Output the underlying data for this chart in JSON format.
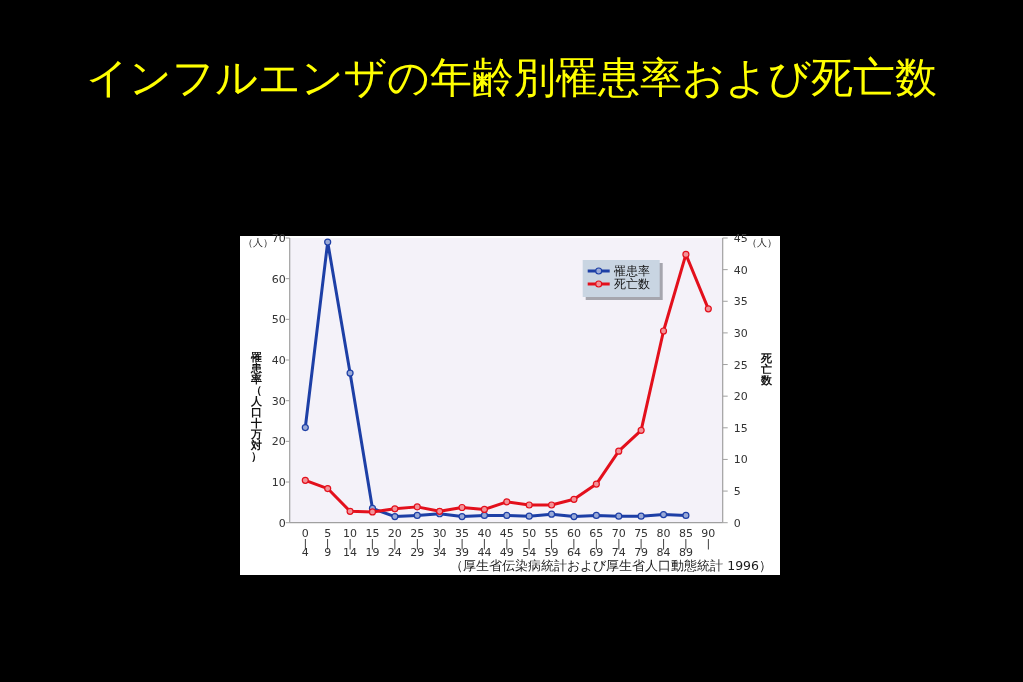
{
  "chart_data": {
    "type": "line",
    "title": "インフルエンザの年齢別罹患率および死亡数",
    "ylabel": "罹患率（人口十万対）",
    "y2label": "死亡数",
    "annotations": [
      "（人）",
      "（人）",
      "（厚生省伝染病統計および厚生省人口動態統計 1996）"
    ],
    "categories": [
      "0\n|\n4",
      "5\n|\n9",
      "10\n|\n14",
      "15\n|\n19",
      "20\n|\n24",
      "25\n|\n29",
      "30\n|\n34",
      "35\n|\n39",
      "40\n|\n44",
      "45\n|\n49",
      "50\n|\n54",
      "55\n|\n59",
      "60\n|\n64",
      "65\n|\n69",
      "70\n|\n74",
      "75\n|\n79",
      "80\n|\n84",
      "85\n|\n89",
      "90\n|"
    ],
    "series": [
      {
        "name": "罹患率",
        "color": "#1d3fa6",
        "values": [
          23.4,
          69,
          36.8,
          3.5,
          1.5,
          1.8,
          2.2,
          1.5,
          1.8,
          1.8,
          1.6,
          2.1,
          1.5,
          1.8,
          1.6,
          1.6,
          2.0,
          1.8,
          null
        ]
      },
      {
        "name": "死亡数",
        "color": "#e3101c",
        "axis": "y2",
        "values": [
          6.7,
          5.4,
          1.8,
          1.7,
          2.2,
          2.5,
          1.8,
          2.4,
          2.1,
          3.3,
          2.8,
          2.8,
          3.7,
          6.1,
          11.3,
          14.6,
          30.3,
          42.4,
          33.8
        ]
      }
    ],
    "ylim": [
      0,
      70
    ],
    "yticks": [
      0,
      10,
      20,
      30,
      40,
      50,
      60,
      70
    ],
    "y2lim": [
      0,
      45
    ],
    "y2ticks": [
      0,
      5,
      10,
      15,
      20,
      25,
      30,
      35,
      40,
      45
    ],
    "legend": "top right",
    "marker": "circle",
    "line_style": "solid"
  }
}
